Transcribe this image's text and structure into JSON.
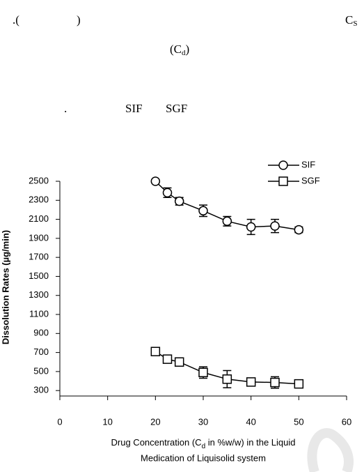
{
  "document_text": {
    "line1_left": [
      ".(",
      ")"
    ],
    "line1_right": [
      "C",
      "S"
    ],
    "line2": [
      "(C",
      "d",
      ")"
    ],
    "line3": [
      ".",
      "SIF",
      "SGF"
    ]
  },
  "chart_data": {
    "type": "line",
    "y_label": "Dissolution Rates (µg/min)",
    "x_label_line1": [
      "Drug Concentration (C",
      "d",
      " in %w/w) in the Liquid"
    ],
    "x_label_line2": "Medication of Liquisolid system",
    "x": [
      20,
      22.5,
      25,
      30,
      35,
      40,
      45,
      50
    ],
    "series": [
      {
        "name": "SIF",
        "color": "#000000",
        "marker": "circle",
        "values": [
          2500,
          2380,
          2290,
          2190,
          2080,
          2020,
          2030,
          1990
        ],
        "errors": [
          0,
          50,
          40,
          60,
          50,
          80,
          70,
          30
        ]
      },
      {
        "name": "SGF",
        "color": "#000000",
        "marker": "square",
        "values": [
          710,
          630,
          600,
          490,
          420,
          390,
          385,
          370
        ],
        "errors": [
          0,
          20,
          30,
          60,
          90,
          40,
          60,
          30
        ]
      }
    ],
    "xlim": [
      0,
      60
    ],
    "xticks": [
      0,
      10,
      20,
      30,
      40,
      50,
      60
    ],
    "ylim": [
      250,
      2500
    ],
    "yticks": [
      300,
      500,
      700,
      900,
      1100,
      1300,
      1500,
      1700,
      1900,
      2100,
      2300,
      2500
    ],
    "legend": "upper-right",
    "grid": false
  }
}
